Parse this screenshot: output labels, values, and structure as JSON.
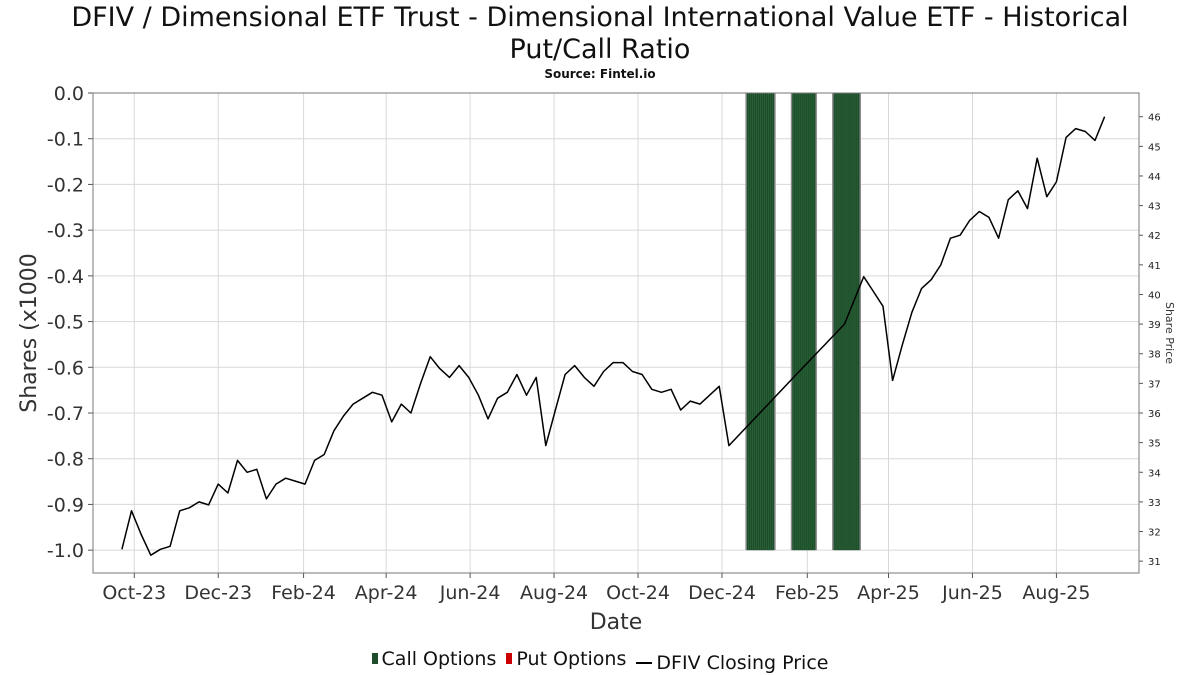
{
  "title_line1": "DFIV / Dimensional ETF Trust - Dimensional International Value ETF - Historical",
  "title_line2": "Put/Call Ratio",
  "subtitle": "Source: Fintel.io",
  "colors": {
    "call": "#1e4d2b",
    "put": "#cc0000",
    "price": "#000000",
    "grid": "#d8d8d8"
  },
  "legend": {
    "call_label": "Call Options",
    "put_label": "Put Options",
    "price_label": "DFIV Closing Price"
  },
  "chart_data": {
    "type": "line",
    "xlabel": "Date",
    "ylabel": "Shares (x1000",
    "y2label": "Share Price",
    "x_ticks": [
      "Oct-23",
      "Dec-23",
      "Feb-24",
      "Apr-24",
      "Jun-24",
      "Aug-24",
      "Oct-24",
      "Dec-24",
      "Feb-25",
      "Apr-25",
      "Jun-25",
      "Aug-25"
    ],
    "x_range": [
      "2023-09-01",
      "2025-09-30"
    ],
    "y_left_range": [
      -1.05,
      0.0
    ],
    "y_left_ticks": [
      "0.0",
      "-0.1",
      "-0.2",
      "-0.3",
      "-0.4",
      "-0.5",
      "-0.6",
      "-0.7",
      "-0.8",
      "-0.9",
      "-1.0"
    ],
    "y_right_range": [
      30.6,
      46.8
    ],
    "y_right_ticks": [
      "31",
      "32",
      "33",
      "34",
      "35",
      "36",
      "37",
      "38",
      "39",
      "40",
      "41",
      "42",
      "43",
      "44",
      "45",
      "46"
    ],
    "grid": true,
    "series": [
      {
        "name": "Call Options",
        "type": "bar",
        "bars": [
          {
            "start": "2024-12-18",
            "end": "2025-01-09",
            "value": -1.0
          },
          {
            "start": "2025-01-20",
            "end": "2025-02-08",
            "value": -1.0
          },
          {
            "start": "2025-02-19",
            "end": "2025-03-12",
            "value": -1.0
          }
        ]
      },
      {
        "name": "Put Options",
        "type": "bar",
        "bars": []
      },
      {
        "name": "DFIV Closing Price",
        "type": "line",
        "points": [
          [
            "2023-09-22",
            31.4
          ],
          [
            "2023-09-29",
            32.7
          ],
          [
            "2023-10-06",
            31.9
          ],
          [
            "2023-10-13",
            31.2
          ],
          [
            "2023-10-20",
            31.4
          ],
          [
            "2023-10-27",
            31.5
          ],
          [
            "2023-11-03",
            32.7
          ],
          [
            "2023-11-10",
            32.8
          ],
          [
            "2023-11-17",
            33.0
          ],
          [
            "2023-11-24",
            32.9
          ],
          [
            "2023-12-01",
            33.6
          ],
          [
            "2023-12-08",
            33.3
          ],
          [
            "2023-12-15",
            34.4
          ],
          [
            "2023-12-22",
            34.0
          ],
          [
            "2023-12-29",
            34.1
          ],
          [
            "2024-01-05",
            33.1
          ],
          [
            "2024-01-12",
            33.6
          ],
          [
            "2024-01-19",
            33.8
          ],
          [
            "2024-01-26",
            33.7
          ],
          [
            "2024-02-02",
            33.6
          ],
          [
            "2024-02-09",
            34.4
          ],
          [
            "2024-02-16",
            34.6
          ],
          [
            "2024-02-23",
            35.4
          ],
          [
            "2024-03-01",
            35.9
          ],
          [
            "2024-03-08",
            36.3
          ],
          [
            "2024-03-15",
            36.5
          ],
          [
            "2024-03-22",
            36.7
          ],
          [
            "2024-03-29",
            36.6
          ],
          [
            "2024-04-05",
            35.7
          ],
          [
            "2024-04-12",
            36.3
          ],
          [
            "2024-04-19",
            36.0
          ],
          [
            "2024-04-26",
            37.0
          ],
          [
            "2024-05-03",
            37.9
          ],
          [
            "2024-05-10",
            37.5
          ],
          [
            "2024-05-17",
            37.2
          ],
          [
            "2024-05-24",
            37.6
          ],
          [
            "2024-05-31",
            37.2
          ],
          [
            "2024-06-07",
            36.6
          ],
          [
            "2024-06-14",
            35.8
          ],
          [
            "2024-06-21",
            36.5
          ],
          [
            "2024-06-28",
            36.7
          ],
          [
            "2024-07-05",
            37.3
          ],
          [
            "2024-07-12",
            36.6
          ],
          [
            "2024-07-19",
            37.2
          ],
          [
            "2024-07-26",
            34.9
          ],
          [
            "2024-08-02",
            36.1
          ],
          [
            "2024-08-09",
            37.3
          ],
          [
            "2024-08-16",
            37.6
          ],
          [
            "2024-08-23",
            37.2
          ],
          [
            "2024-08-30",
            36.9
          ],
          [
            "2024-09-06",
            37.4
          ],
          [
            "2024-09-13",
            37.7
          ],
          [
            "2024-09-20",
            37.7
          ],
          [
            "2024-09-27",
            37.4
          ],
          [
            "2024-10-04",
            37.3
          ],
          [
            "2024-10-11",
            36.8
          ],
          [
            "2024-10-18",
            36.7
          ],
          [
            "2024-10-25",
            36.8
          ],
          [
            "2024-11-01",
            36.1
          ],
          [
            "2024-11-08",
            36.4
          ],
          [
            "2024-11-15",
            36.3
          ],
          [
            "2024-11-22",
            36.6
          ],
          [
            "2024-11-29",
            36.9
          ],
          [
            "2024-12-06",
            34.9
          ],
          [
            "2025-01-24",
            37.3
          ],
          [
            "2025-02-28",
            39.0
          ],
          [
            "2025-03-14",
            40.6
          ],
          [
            "2025-03-21",
            40.1
          ],
          [
            "2025-03-28",
            39.6
          ],
          [
            "2025-04-04",
            37.1
          ],
          [
            "2025-04-11",
            38.3
          ],
          [
            "2025-04-18",
            39.4
          ],
          [
            "2025-04-25",
            40.2
          ],
          [
            "2025-05-02",
            40.5
          ],
          [
            "2025-05-09",
            41.0
          ],
          [
            "2025-05-16",
            41.9
          ],
          [
            "2025-05-23",
            42.0
          ],
          [
            "2025-05-30",
            42.5
          ],
          [
            "2025-06-06",
            42.8
          ],
          [
            "2025-06-13",
            42.6
          ],
          [
            "2025-06-20",
            41.9
          ],
          [
            "2025-06-27",
            43.2
          ],
          [
            "2025-07-04",
            43.5
          ],
          [
            "2025-07-11",
            42.9
          ],
          [
            "2025-07-18",
            44.6
          ],
          [
            "2025-07-25",
            43.3
          ],
          [
            "2025-08-01",
            43.8
          ],
          [
            "2025-08-08",
            45.3
          ],
          [
            "2025-08-15",
            45.6
          ],
          [
            "2025-08-22",
            45.5
          ],
          [
            "2025-08-29",
            45.2
          ],
          [
            "2025-09-05",
            46.0
          ]
        ]
      }
    ]
  }
}
